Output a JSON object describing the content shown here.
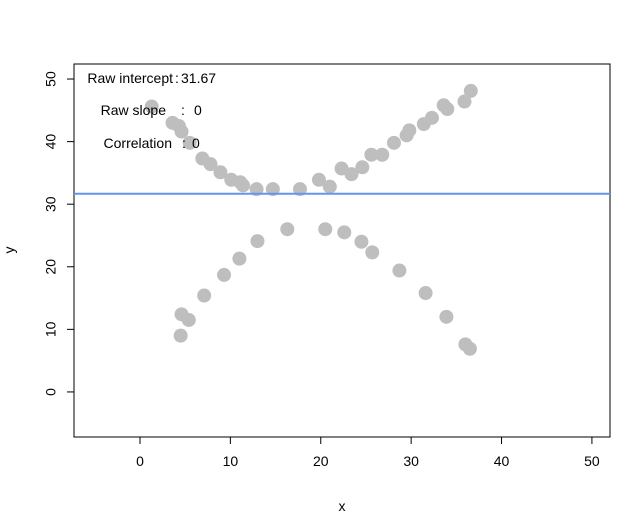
{
  "chart_data": {
    "type": "scatter",
    "title": "",
    "xlabel": "x",
    "ylabel": "y",
    "xlim": [
      -7.3,
      52
    ],
    "ylim": [
      -7.2,
      52.4
    ],
    "xticks": [
      0,
      10,
      20,
      30,
      40,
      50
    ],
    "yticks": [
      0,
      10,
      20,
      30,
      40,
      50
    ],
    "grid": false,
    "point_color": "#bebebe",
    "line_color": "#6495ed",
    "regression_line": {
      "intercept": 31.67,
      "slope": 0
    },
    "annotations": [
      {
        "label": "Raw intercept",
        "sep": ":",
        "value": "31.67"
      },
      {
        "label": "Raw slope",
        "sep": ":",
        "value": "0"
      },
      {
        "label": "Correlation",
        "sep": ":",
        "value": "0"
      }
    ],
    "series": [
      {
        "x": [
          1.3,
          3.6,
          4.3,
          4.6,
          5.5,
          6.9,
          7.8,
          8.9,
          10.1,
          11.1,
          11.4,
          12.9,
          14.7,
          17.7,
          19.8,
          21.0,
          22.3,
          23.4,
          24.6,
          25.6,
          26.8,
          28.1,
          29.5,
          29.8,
          31.4,
          32.3,
          33.6,
          34.0,
          35.9,
          36.6,
          4.5,
          4.6,
          5.4,
          7.1,
          9.3,
          11.0,
          13.0,
          16.3,
          20.5,
          22.6,
          24.5,
          25.7,
          28.7,
          31.6,
          33.9,
          36.0,
          36.5
        ],
        "y": [
          45.6,
          43.0,
          42.5,
          41.6,
          39.8,
          37.3,
          36.4,
          35.1,
          33.9,
          33.5,
          33.0,
          32.4,
          32.4,
          32.4,
          33.9,
          32.8,
          35.7,
          34.8,
          35.9,
          37.9,
          37.9,
          39.8,
          41.0,
          41.8,
          42.8,
          43.8,
          45.8,
          45.2,
          46.4,
          48.1,
          9.0,
          12.4,
          11.5,
          15.4,
          18.7,
          21.3,
          24.1,
          26.0,
          26.0,
          25.5,
          24.0,
          22.3,
          19.4,
          15.8,
          12.0,
          7.6,
          6.9
        ]
      }
    ]
  }
}
